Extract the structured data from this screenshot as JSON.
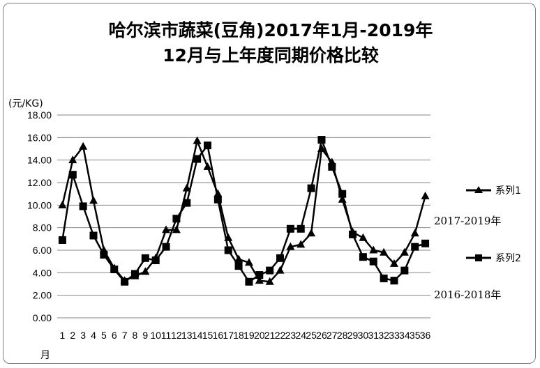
{
  "chart_data": {
    "type": "line",
    "title_line1": "哈尔滨市蔬菜(豆角)2017年1月-2019年",
    "title_line2": "12月与上年度同期价格比较",
    "ylabel": "(元/KG)",
    "xlabel": "月",
    "ylim": [
      0,
      18
    ],
    "yticks": [
      "0.00",
      "2.00",
      "4.00",
      "6.00",
      "8.00",
      "10.00",
      "12.00",
      "14.00",
      "16.00",
      "18.00"
    ],
    "categories": [
      "1",
      "2",
      "3",
      "4",
      "5",
      "6",
      "7",
      "8",
      "9",
      "10",
      "11",
      "12",
      "13",
      "14",
      "15",
      "16",
      "17",
      "18",
      "19",
      "20",
      "21",
      "22",
      "23",
      "24",
      "25",
      "26",
      "27",
      "28",
      "29",
      "30",
      "31",
      "32",
      "33",
      "34",
      "35",
      "36"
    ],
    "grid": true,
    "legend_position": "right",
    "series": [
      {
        "name": "系列1",
        "note": "2017-2019年",
        "marker": "triangle",
        "values": [
          10.0,
          14.0,
          15.2,
          10.4,
          6.0,
          4.4,
          3.3,
          3.7,
          4.1,
          5.3,
          7.8,
          7.8,
          11.5,
          15.7,
          13.4,
          11.0,
          7.1,
          5.2,
          4.9,
          3.3,
          3.2,
          4.2,
          6.3,
          6.5,
          7.5,
          15.0,
          13.8,
          10.5,
          7.6,
          7.1,
          6.0,
          5.8,
          4.8,
          5.8,
          7.5,
          10.8
        ]
      },
      {
        "name": "系列2",
        "note": "2016-2018年",
        "marker": "square",
        "values": [
          6.9,
          12.7,
          9.9,
          7.3,
          5.6,
          4.3,
          3.2,
          3.9,
          5.3,
          5.1,
          6.3,
          8.8,
          10.2,
          14.1,
          15.3,
          10.5,
          6.0,
          4.6,
          3.2,
          3.8,
          4.2,
          5.3,
          7.9,
          7.9,
          11.5,
          15.8,
          13.4,
          11.0,
          7.4,
          5.4,
          5.0,
          3.5,
          3.3,
          4.2,
          6.3,
          6.6
        ]
      }
    ]
  }
}
